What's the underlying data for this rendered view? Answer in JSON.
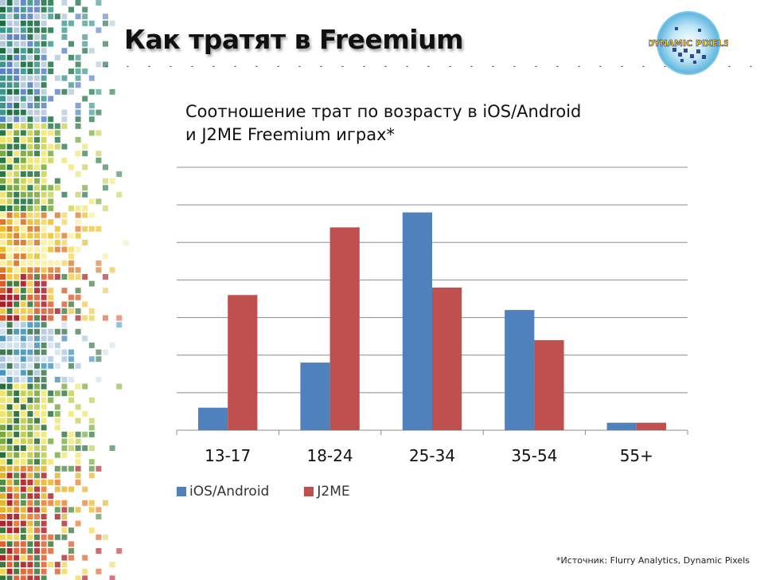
{
  "slide": {
    "title": "Как тратят в Freemium",
    "logo_text": "DYNAMIC PIXELS",
    "source_note": "*Источник: Flurry Analytics, Dynamic Pixels"
  },
  "chart_data": {
    "type": "bar",
    "title_lines": [
      "Соотношение трат по возрасту в iOS/Android",
      "и J2ME Freemium играх*"
    ],
    "categories": [
      "13-17",
      "18-24",
      "25-34",
      "35-54",
      "55+"
    ],
    "series": [
      {
        "name": "iOS/Android",
        "color": "#4f81bd",
        "values": [
          6,
          18,
          58,
          32,
          2
        ]
      },
      {
        "name": "J2ME",
        "color": "#c0504d",
        "values": [
          36,
          54,
          38,
          24,
          2
        ]
      }
    ],
    "ylim": [
      0,
      70
    ],
    "y_gridline_step": 10,
    "y_tick_labels_shown": false,
    "grid": true,
    "legend_position": "bottom-left"
  }
}
